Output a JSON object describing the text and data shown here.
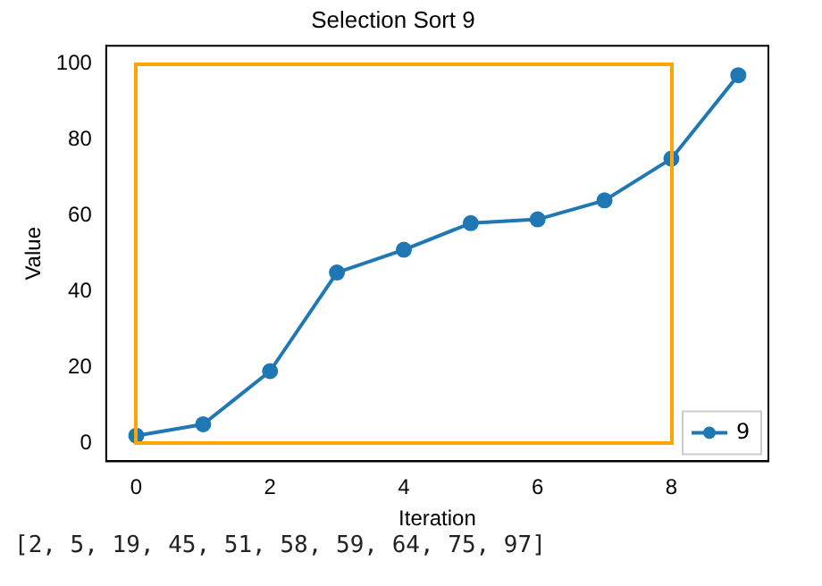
{
  "chart_data": {
    "type": "line",
    "title": "Selection Sort 9",
    "xlabel": "Iteration",
    "ylabel": "Value",
    "x": [
      0,
      1,
      2,
      3,
      4,
      5,
      6,
      7,
      8,
      9
    ],
    "series": [
      {
        "name": "9",
        "color": "#1f77b4",
        "values": [
          2,
          5,
          19,
          45,
          51,
          58,
          59,
          64,
          75,
          97
        ],
        "marker": "circle"
      }
    ],
    "xlim": [
      -0.45,
      9.45
    ],
    "xticks": [
      0,
      2,
      4,
      6,
      8
    ],
    "ylim": [
      -4.75,
      104.75
    ],
    "yticks": [
      0,
      20,
      40,
      60,
      80,
      100
    ],
    "grid": false,
    "legend": "bottom right",
    "annotations": [
      "[2, 5, 19, 45, 51, 58, 59, 64, 75, 97]"
    ]
  }
}
